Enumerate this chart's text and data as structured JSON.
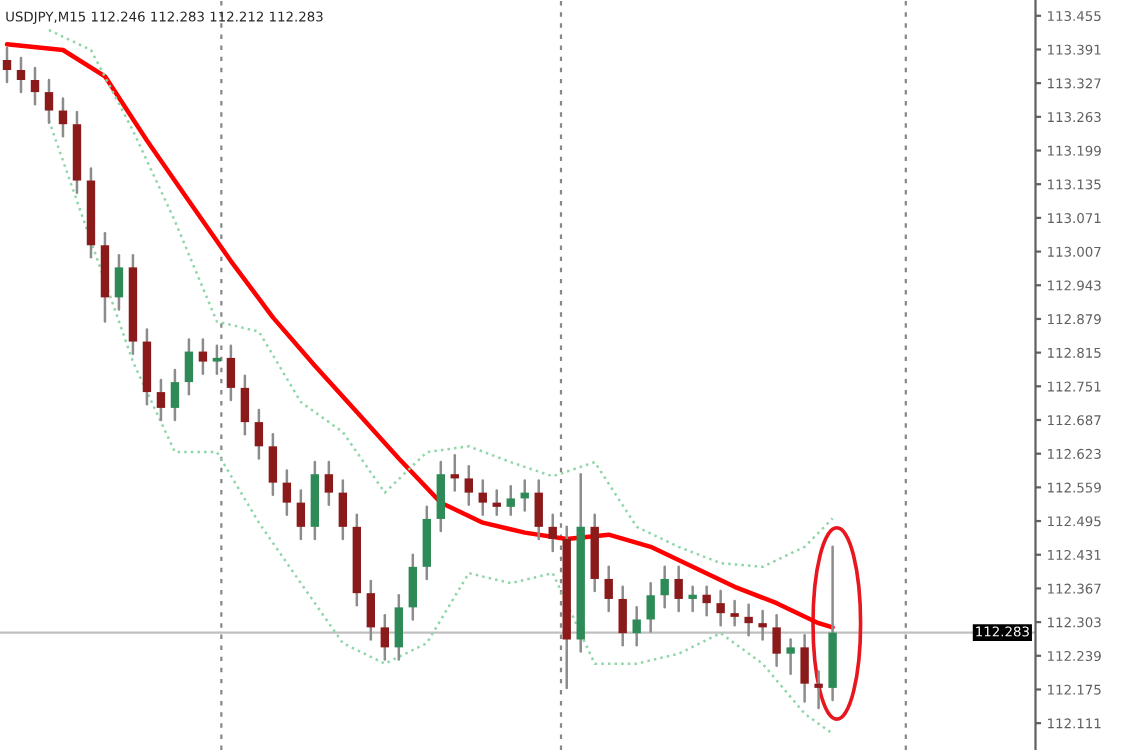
{
  "chart_data": {
    "type": "candlestick",
    "title": "USDJPY,M15 112.246 112.283 112.212 112.283",
    "categories": [
      null,
      null,
      null,
      null,
      null,
      null,
      null,
      null,
      null,
      null,
      null,
      null,
      null,
      null,
      null,
      null,
      null,
      null,
      null,
      null,
      null,
      null,
      null,
      null,
      null,
      null,
      null,
      null,
      null,
      null,
      null,
      null,
      null,
      null,
      null,
      null,
      null,
      null,
      null,
      null,
      null,
      null,
      null,
      null,
      null,
      null,
      null,
      null,
      null,
      null,
      null,
      null,
      null,
      null,
      null,
      null,
      null,
      null,
      null,
      null,
      null,
      null,
      null,
      null,
      null,
      null,
      null,
      null,
      null,
      null,
      null,
      null,
      null,
      null
    ],
    "ohlc": [
      [
        113.371,
        113.394,
        113.329,
        113.352
      ],
      [
        113.352,
        113.375,
        113.31,
        113.333
      ],
      [
        113.333,
        113.356,
        113.287,
        113.31
      ],
      [
        113.31,
        113.333,
        113.252,
        113.275
      ],
      [
        113.275,
        113.298,
        113.226,
        113.249
      ],
      [
        113.249,
        113.272,
        113.119,
        113.142
      ],
      [
        113.142,
        113.165,
        112.996,
        113.019
      ],
      [
        113.019,
        113.042,
        112.874,
        112.92
      ],
      [
        112.92,
        113.0,
        112.897,
        112.977
      ],
      [
        112.977,
        113.0,
        112.813,
        112.836
      ],
      [
        112.836,
        112.859,
        112.717,
        112.74
      ],
      [
        112.74,
        112.763,
        112.687,
        112.71
      ],
      [
        112.71,
        112.782,
        112.687,
        112.759
      ],
      [
        112.759,
        112.84,
        112.736,
        112.817
      ],
      [
        112.817,
        112.84,
        112.775,
        112.798
      ],
      [
        112.798,
        112.828,
        112.775,
        112.805
      ],
      [
        112.805,
        112.828,
        112.725,
        112.748
      ],
      [
        112.748,
        112.771,
        112.66,
        112.683
      ],
      [
        112.683,
        112.706,
        112.614,
        112.637
      ],
      [
        112.637,
        112.66,
        112.545,
        112.568
      ],
      [
        112.568,
        112.591,
        112.507,
        112.53
      ],
      [
        112.53,
        112.553,
        112.461,
        112.484
      ],
      [
        112.484,
        112.607,
        112.461,
        112.584
      ],
      [
        112.584,
        112.607,
        112.526,
        112.549
      ],
      [
        112.549,
        112.572,
        112.461,
        112.484
      ],
      [
        112.484,
        112.507,
        112.335,
        112.358
      ],
      [
        112.358,
        112.381,
        112.27,
        112.293
      ],
      [
        112.293,
        112.316,
        112.232,
        112.255
      ],
      [
        112.255,
        112.354,
        112.232,
        112.331
      ],
      [
        112.331,
        112.431,
        112.308,
        112.408
      ],
      [
        112.408,
        112.522,
        112.385,
        112.499
      ],
      [
        112.499,
        112.607,
        112.476,
        112.584
      ],
      [
        112.584,
        112.62,
        112.553,
        112.576
      ],
      [
        112.576,
        112.599,
        112.526,
        112.549
      ],
      [
        112.549,
        112.572,
        112.507,
        112.53
      ],
      [
        112.53,
        112.553,
        112.507,
        112.522
      ],
      [
        112.522,
        112.561,
        112.507,
        112.538
      ],
      [
        112.538,
        112.572,
        112.515,
        112.549
      ],
      [
        112.549,
        112.572,
        112.461,
        112.484
      ],
      [
        112.484,
        112.507,
        112.438,
        112.461
      ],
      [
        112.461,
        112.484,
        112.178,
        112.27
      ],
      [
        112.27,
        112.584,
        112.247,
        112.484
      ],
      [
        112.484,
        112.507,
        112.362,
        112.385
      ],
      [
        112.385,
        112.408,
        112.324,
        112.347
      ],
      [
        112.347,
        112.37,
        112.259,
        112.282
      ],
      [
        112.282,
        112.331,
        112.259,
        112.308
      ],
      [
        112.308,
        112.377,
        112.285,
        112.354
      ],
      [
        112.354,
        112.408,
        112.331,
        112.385
      ],
      [
        112.385,
        112.408,
        112.324,
        112.347
      ],
      [
        112.347,
        112.37,
        112.324,
        112.355
      ],
      [
        112.355,
        112.37,
        112.316,
        112.339
      ],
      [
        112.339,
        112.362,
        112.297,
        112.32
      ],
      [
        112.32,
        112.343,
        112.297,
        112.313
      ],
      [
        112.313,
        112.336,
        112.278,
        112.301
      ],
      [
        112.301,
        112.324,
        112.27,
        112.293
      ],
      [
        112.293,
        112.316,
        112.22,
        112.243
      ],
      [
        112.243,
        112.27,
        112.205,
        112.255
      ],
      [
        112.255,
        112.278,
        112.152,
        112.186
      ],
      [
        112.186,
        112.209,
        112.14,
        112.178
      ],
      [
        112.178,
        112.446,
        112.155,
        112.283
      ],
      null,
      null,
      null,
      null,
      null,
      null,
      null,
      null,
      null,
      null,
      null,
      null,
      null,
      null
    ],
    "series": [
      {
        "type": "line",
        "color": "#ff0000",
        "line_style": "solid",
        "values": [
          113.401,
          null,
          null,
          null,
          113.39,
          null,
          null,
          113.34,
          null,
          null,
          113.218,
          null,
          null,
          113.103,
          null,
          null,
          112.989,
          null,
          null,
          112.882,
          null,
          null,
          112.79,
          null,
          null,
          112.702,
          null,
          null,
          112.614,
          null,
          null,
          112.53,
          null,
          null,
          112.492,
          null,
          null,
          112.473,
          null,
          null,
          112.461,
          null,
          null,
          112.469,
          null,
          null,
          112.446,
          null,
          null,
          112.408,
          null,
          null,
          112.37,
          null,
          null,
          112.339,
          null,
          null,
          112.301,
          112.293,
          null,
          null,
          null,
          null,
          null,
          null,
          null,
          null,
          null,
          null,
          null,
          null,
          null,
          null
        ]
      },
      {
        "type": "line",
        "color": "#8fd6a8",
        "line_style": "dotted",
        "values": [
          null,
          null,
          null,
          113.428,
          null,
          null,
          113.39,
          null,
          null,
          113.237,
          null,
          null,
          113.065,
          null,
          null,
          112.874,
          null,
          null,
          112.855,
          null,
          null,
          112.721,
          null,
          null,
          112.664,
          null,
          null,
          112.549,
          null,
          null,
          112.626,
          null,
          null,
          112.637,
          null,
          null,
          112.607,
          null,
          null,
          112.58,
          null,
          null,
          112.607,
          null,
          null,
          112.484,
          null,
          null,
          112.446,
          null,
          null,
          112.415,
          null,
          null,
          112.408,
          null,
          null,
          112.446,
          null,
          112.5,
          null,
          null,
          null,
          null,
          null,
          null,
          null,
          null,
          null,
          null,
          null,
          null,
          null,
          null
        ]
      },
      {
        "type": "line",
        "color": "#8fd6a8",
        "line_style": "dotted",
        "values": [
          null,
          null,
          null,
          113.256,
          null,
          null,
          null,
          null,
          null,
          112.798,
          null,
          null,
          112.626,
          null,
          null,
          112.626,
          null,
          null,
          112.492,
          null,
          null,
          112.377,
          null,
          null,
          112.263,
          null,
          null,
          112.224,
          null,
          null,
          112.263,
          null,
          null,
          112.396,
          null,
          null,
          112.377,
          null,
          null,
          112.396,
          null,
          null,
          112.224,
          null,
          null,
          112.224,
          null,
          null,
          112.243,
          null,
          null,
          112.282,
          null,
          null,
          112.224,
          null,
          null,
          112.129,
          null,
          112.091,
          null,
          null,
          null,
          null,
          null,
          null,
          null,
          null,
          null,
          null,
          null,
          null,
          null,
          null
        ]
      }
    ],
    "ylim": [
      112.06,
      113.485
    ],
    "yticks": [
      113.455,
      113.391,
      113.327,
      113.263,
      113.199,
      113.135,
      113.071,
      113.007,
      112.943,
      112.879,
      112.815,
      112.751,
      112.687,
      112.623,
      112.559,
      112.495,
      112.431,
      112.367,
      112.303,
      112.239,
      112.175,
      112.111
    ],
    "ref_lines": [
      {
        "axis": "y",
        "value": 112.283,
        "label": "112.283",
        "color": "#c0c0c0"
      }
    ],
    "tick_labels": "y"
  }
}
